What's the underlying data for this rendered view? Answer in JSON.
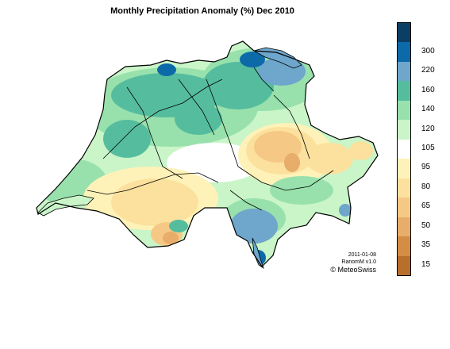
{
  "title": "Monthly Precipitation Anomaly (%) Dec 2010",
  "legend": {
    "classes": [
      {
        "label": "",
        "color": "#0b3e63"
      },
      {
        "label": "300",
        "color": "#0d6aa9"
      },
      {
        "label": "220",
        "color": "#6ea6cc"
      },
      {
        "label": "160",
        "color": "#55bd9e"
      },
      {
        "label": "140",
        "color": "#98e1ad"
      },
      {
        "label": "120",
        "color": "#c9f5c8"
      },
      {
        "label": "105",
        "color": "#ffffff"
      },
      {
        "label": "95",
        "color": "#fff2b8"
      },
      {
        "label": "80",
        "color": "#fbe19d"
      },
      {
        "label": "65",
        "color": "#f5c985"
      },
      {
        "label": "50",
        "color": "#e8ad6a"
      },
      {
        "label": "35",
        "color": "#d48d45"
      },
      {
        "label": "15",
        "color": "#b86f2c"
      }
    ]
  },
  "stamp": {
    "date": "2011-01-08",
    "product": "RanomM v1.0",
    "copyright": "© MeteoSwiss"
  }
}
